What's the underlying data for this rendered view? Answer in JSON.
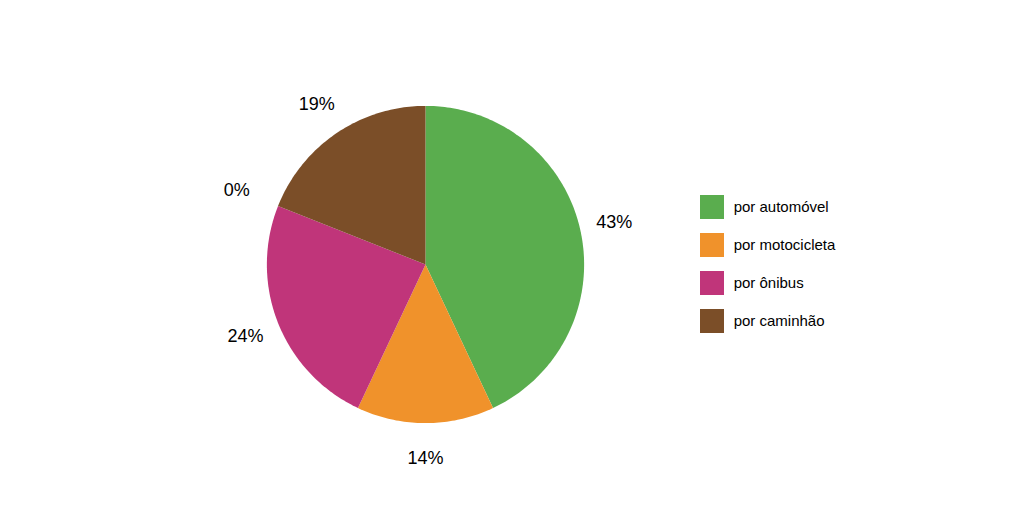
{
  "chart_data": {
    "type": "pie",
    "categories": [
      "por automóvel",
      "por motocicleta",
      "por ônibus",
      null,
      "por caminhão"
    ],
    "values": [
      43,
      14,
      24,
      0,
      19
    ],
    "value_labels": [
      "43%",
      "14%",
      "24%",
      "0%",
      "19%"
    ],
    "colors": [
      "#5aad4e",
      "#f0922b",
      "#c0357a",
      "#c0357a",
      "#7b4e28"
    ],
    "data_labels": true,
    "legend": "right"
  }
}
